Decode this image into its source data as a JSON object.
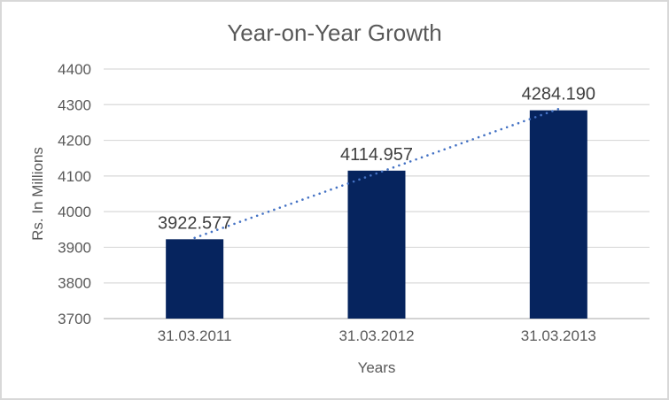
{
  "chart_data": {
    "type": "bar",
    "title": "Year-on-Year Growth",
    "xlabel": "Years",
    "ylabel": "Rs. In Millions",
    "categories": [
      "31.03.2011",
      "31.03.2012",
      "31.03.2013"
    ],
    "series": [
      {
        "name": "Rs. In Millions",
        "values": [
          3922.577,
          4114.957,
          4284.19
        ]
      }
    ],
    "data_labels": [
      "3922.577",
      "4114.957",
      "4284.190"
    ],
    "ylim": [
      3700,
      4400
    ],
    "yticks": [
      3700,
      3800,
      3900,
      4000,
      4100,
      4200,
      4300,
      4400
    ],
    "grid": true,
    "legend": "none",
    "trendline": {
      "type": "linear",
      "style": "dotted",
      "color": "#4472c4"
    },
    "colors": {
      "bar": "#06245e",
      "trendline": "#4472c4",
      "gridline": "#d9d9d9",
      "axis_line": "#d3d3d3",
      "tick_text": "#595959",
      "label_text": "#3f3f3f",
      "title_text": "#595959",
      "border": "#d8d8d8",
      "background": "#ffffff"
    }
  }
}
